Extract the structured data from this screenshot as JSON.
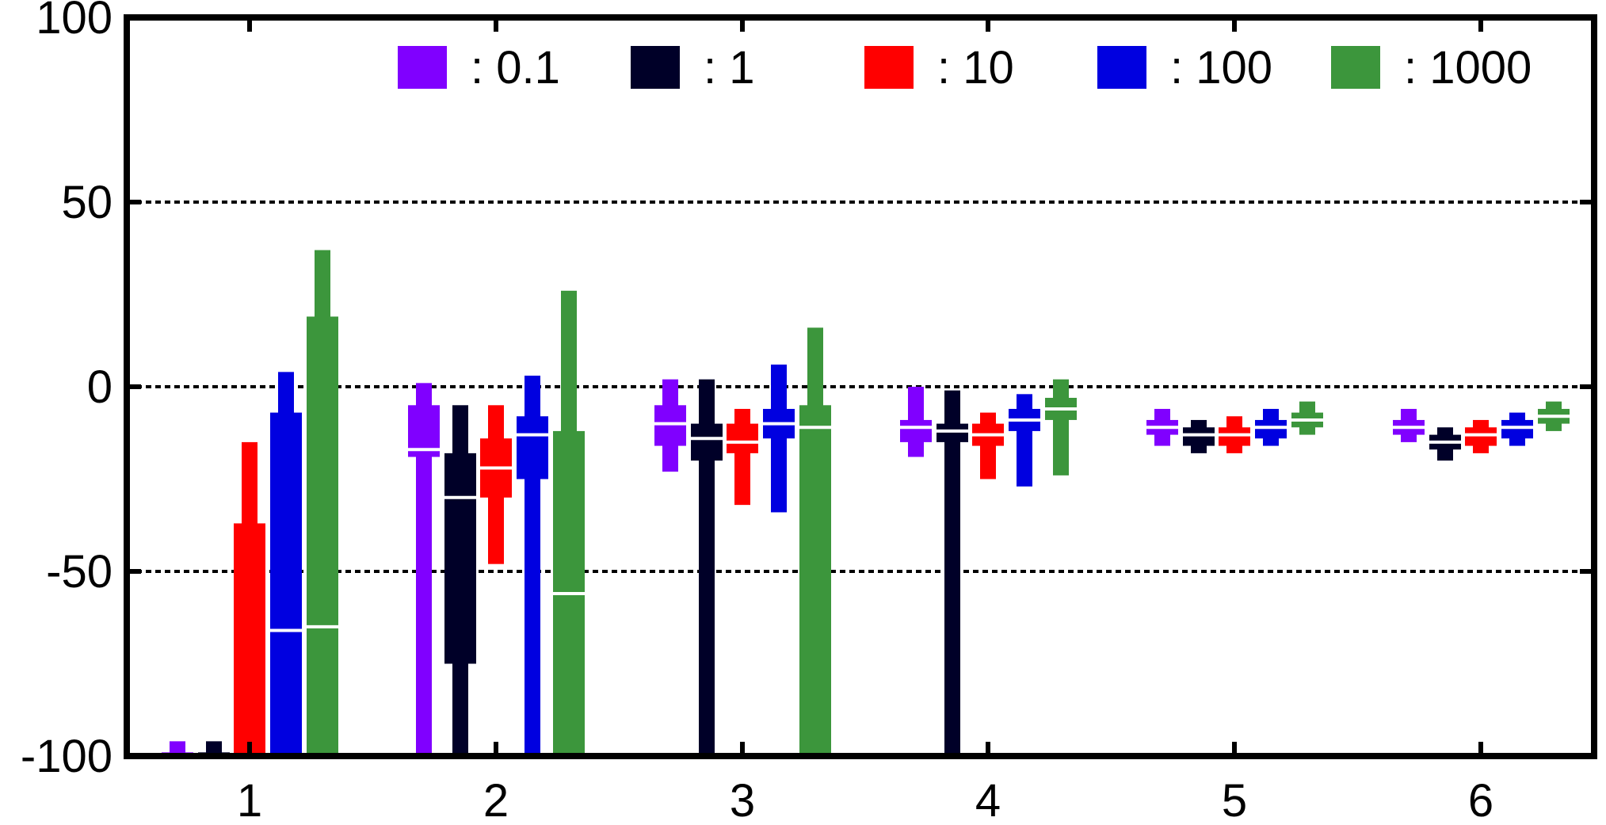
{
  "chart_data": {
    "type": "boxplot",
    "title": "",
    "xlabel": "",
    "ylabel": "",
    "ylim": [
      -100,
      100
    ],
    "yticks": [
      -100,
      -50,
      0,
      50,
      100
    ],
    "ytick_labels": [
      "-100",
      "-50",
      "0",
      "50",
      "100"
    ],
    "categories": [
      "1",
      "2",
      "3",
      "4",
      "5",
      "6"
    ],
    "grid": "horizontal dotted at -50, 0, 50",
    "legend_position": "top-right",
    "series": [
      {
        "name": ": 0.1",
        "color": "#8000ff",
        "boxes": [
          {
            "whisker_low": -100,
            "q1": -100,
            "median": -100,
            "q3": -99,
            "whisker_high": -96
          },
          {
            "whisker_low": -100,
            "q1": -19,
            "median": -17,
            "q3": -5,
            "whisker_high": 1
          },
          {
            "whisker_low": -23,
            "q1": -16,
            "median": -10,
            "q3": -5,
            "whisker_high": 2
          },
          {
            "whisker_low": -19,
            "q1": -15,
            "median": -11,
            "q3": -9,
            "whisker_high": 0
          },
          {
            "whisker_low": -16,
            "q1": -13,
            "median": -11,
            "q3": -9,
            "whisker_high": -6
          },
          {
            "whisker_low": -15,
            "q1": -13,
            "median": -11,
            "q3": -9,
            "whisker_high": -6
          }
        ]
      },
      {
        "name": ": 1",
        "color": "#000028",
        "boxes": [
          {
            "whisker_low": -100,
            "q1": -100,
            "median": -100,
            "q3": -99,
            "whisker_high": -96
          },
          {
            "whisker_low": -100,
            "q1": -75,
            "median": -30,
            "q3": -18,
            "whisker_high": -5
          },
          {
            "whisker_low": -100,
            "q1": -20,
            "median": -14,
            "q3": -10,
            "whisker_high": 2
          },
          {
            "whisker_low": -100,
            "q1": -15,
            "median": -12,
            "q3": -10,
            "whisker_high": -1
          },
          {
            "whisker_low": -18,
            "q1": -16,
            "median": -13,
            "q3": -11,
            "whisker_high": -9
          },
          {
            "whisker_low": -20,
            "q1": -17,
            "median": -15,
            "q3": -13,
            "whisker_high": -11
          }
        ]
      },
      {
        "name": ": 10",
        "color": "#ff0000",
        "boxes": [
          {
            "whisker_low": -100,
            "q1": -100,
            "median": -100,
            "q3": -37,
            "whisker_high": -15
          },
          {
            "whisker_low": -48,
            "q1": -30,
            "median": -22,
            "q3": -14,
            "whisker_high": -5
          },
          {
            "whisker_low": -32,
            "q1": -18,
            "median": -15,
            "q3": -10,
            "whisker_high": -6
          },
          {
            "whisker_low": -25,
            "q1": -16,
            "median": -13,
            "q3": -10,
            "whisker_high": -7
          },
          {
            "whisker_low": -18,
            "q1": -16,
            "median": -13,
            "q3": -11,
            "whisker_high": -8
          },
          {
            "whisker_low": -18,
            "q1": -16,
            "median": -13,
            "q3": -11,
            "whisker_high": -9
          }
        ]
      },
      {
        "name": ": 100",
        "color": "#0000e0",
        "boxes": [
          {
            "whisker_low": -100,
            "q1": -100,
            "median": -66,
            "q3": -7,
            "whisker_high": 4
          },
          {
            "whisker_low": -100,
            "q1": -25,
            "median": -13,
            "q3": -8,
            "whisker_high": 3
          },
          {
            "whisker_low": -34,
            "q1": -14,
            "median": -10,
            "q3": -6,
            "whisker_high": 6
          },
          {
            "whisker_low": -27,
            "q1": -12,
            "median": -9,
            "q3": -6,
            "whisker_high": -2
          },
          {
            "whisker_low": -16,
            "q1": -14,
            "median": -11,
            "q3": -9,
            "whisker_high": -6
          },
          {
            "whisker_low": -16,
            "q1": -14,
            "median": -11,
            "q3": -9,
            "whisker_high": -7
          }
        ]
      },
      {
        "name": ": 1000",
        "color": "#3c963c",
        "boxes": [
          {
            "whisker_low": -100,
            "q1": -100,
            "median": -65,
            "q3": 19,
            "whisker_high": 37
          },
          {
            "whisker_low": -100,
            "q1": -100,
            "median": -56,
            "q3": -12,
            "whisker_high": 26
          },
          {
            "whisker_low": -100,
            "q1": -100,
            "median": -11,
            "q3": -5,
            "whisker_high": 16
          },
          {
            "whisker_low": -24,
            "q1": -9,
            "median": -6,
            "q3": -3,
            "whisker_high": 2
          },
          {
            "whisker_low": -13,
            "q1": -11,
            "median": -9,
            "q3": -7,
            "whisker_high": -4
          },
          {
            "whisker_low": -12,
            "q1": -10,
            "median": -8,
            "q3": -6,
            "whisker_high": -4
          }
        ]
      }
    ]
  }
}
